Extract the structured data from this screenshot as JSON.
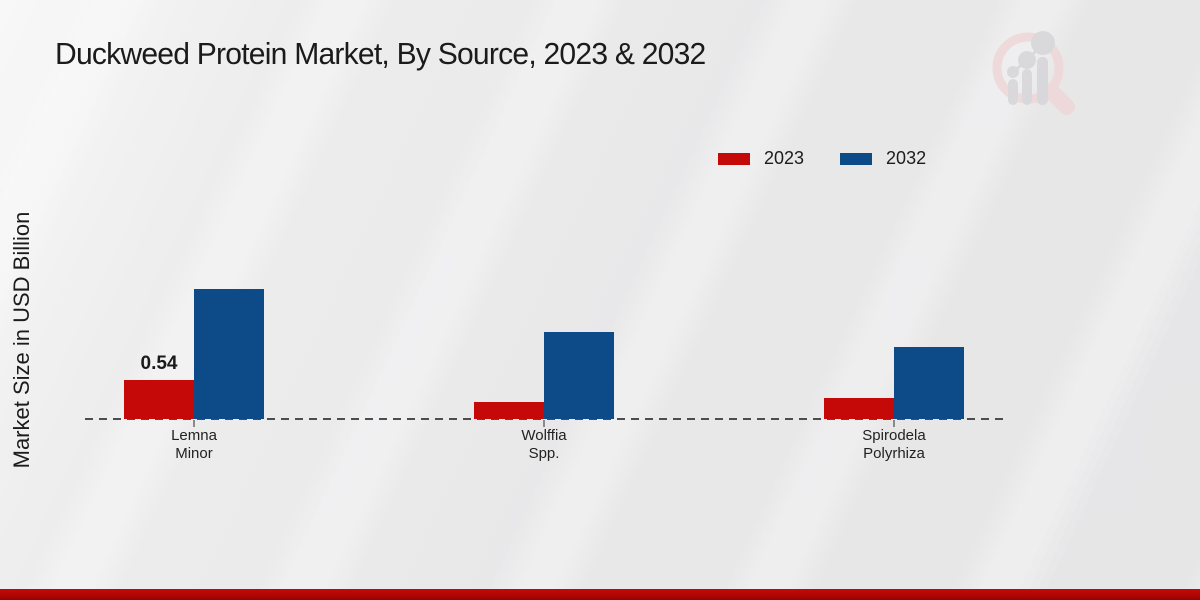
{
  "page": {
    "title": "Duckweed Protein Market, By Source, 2023 & 2032",
    "y_axis_label": "Market Size in USD Billion"
  },
  "colors": {
    "series_2023": "#c50808",
    "series_2032": "#0d4b88",
    "baseline": "#4d4d4d",
    "footer_red": "#b10505",
    "title_text": "#1b1b1b"
  },
  "icons": {
    "brand_logo": "magnifier-bar-chart-watermark"
  },
  "legend": {
    "items": [
      {
        "label": "2023",
        "color": "#c50808"
      },
      {
        "label": "2032",
        "color": "#0d4b88"
      }
    ]
  },
  "chart_data": {
    "type": "bar",
    "title": "Duckweed Protein Market, By Source, 2023 & 2032",
    "ylabel": "Market Size in USD Billion",
    "xlabel": "",
    "categories": [
      "Lemna Minor",
      "Wolffia Spp.",
      "Spirodela Polyrhiza"
    ],
    "category_lines": [
      [
        "Lemna",
        "Minor"
      ],
      [
        "Wolffia",
        "Spp."
      ],
      [
        "Spirodela",
        "Polyrhiza"
      ]
    ],
    "series": [
      {
        "name": "2023",
        "color": "#c50808",
        "values": [
          0.54,
          0.24,
          0.29
        ]
      },
      {
        "name": "2032",
        "color": "#0d4b88",
        "values": [
          1.8,
          1.2,
          1.0
        ]
      }
    ],
    "data_labels": [
      {
        "series": "2023",
        "category": "Lemna Minor",
        "text": "0.54"
      }
    ],
    "ylim": [
      0,
      2.0
    ],
    "grid": false,
    "axis_style": "dashed-zero-baseline-only",
    "legend_position": "top-right"
  }
}
